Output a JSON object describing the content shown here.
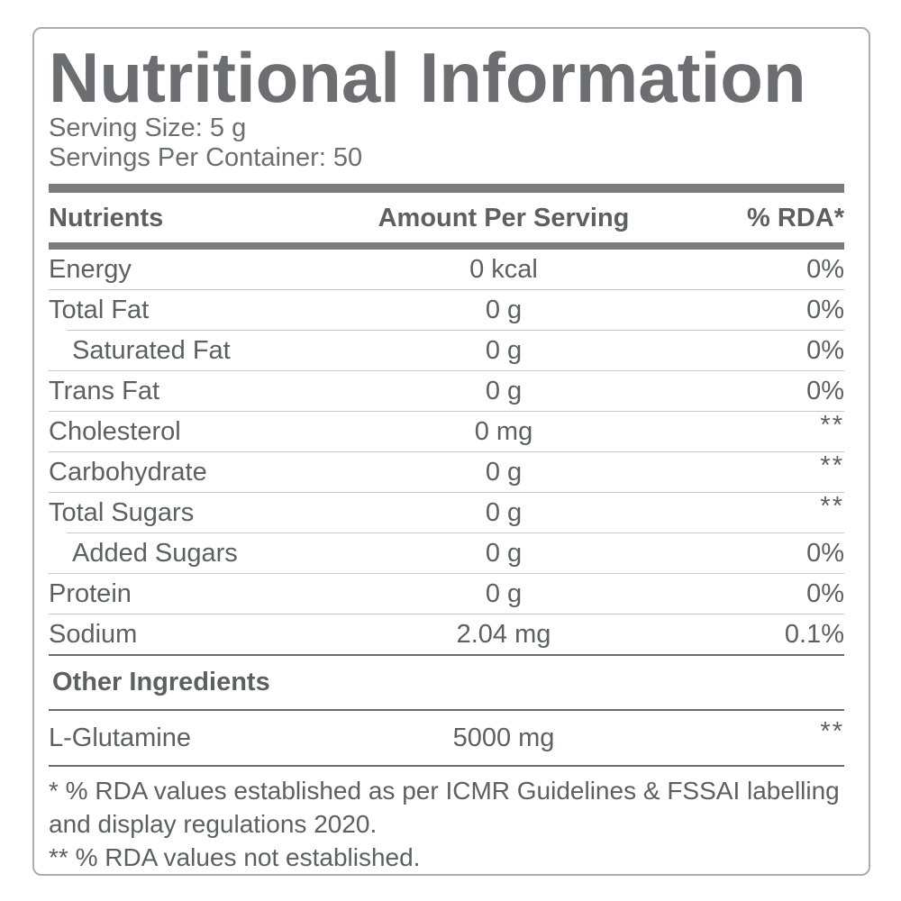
{
  "title": "Nutritional Information",
  "serving": {
    "size": "Serving Size: 5 g",
    "per_container": "Servings Per Container: 50"
  },
  "table": {
    "headers": {
      "nutrients": "Nutrients",
      "amount": "Amount Per Serving",
      "rda": "% RDA*"
    },
    "rows": [
      {
        "label": "Energy",
        "amount": "0 kcal",
        "rda": "0%",
        "indent": false,
        "sep": "none"
      },
      {
        "label": "Total Fat",
        "amount": "0 g",
        "rda": "0%",
        "indent": false,
        "sep": "full"
      },
      {
        "label": "Saturated Fat",
        "amount": "0 g",
        "rda": "0%",
        "indent": true,
        "sep": "indent"
      },
      {
        "label": "Trans Fat",
        "amount": "0 g",
        "rda": "0%",
        "indent": false,
        "sep": "full"
      },
      {
        "label": "Cholesterol",
        "amount": "0 mg",
        "rda": "**",
        "indent": false,
        "sep": "full"
      },
      {
        "label": "Carbohydrate",
        "amount": "0 g",
        "rda": "**",
        "indent": false,
        "sep": "full"
      },
      {
        "label": "Total Sugars",
        "amount": "0 g",
        "rda": "**",
        "indent": false,
        "sep": "full"
      },
      {
        "label": "Added Sugars",
        "amount": "0 g",
        "rda": "0%",
        "indent": true,
        "sep": "indent"
      },
      {
        "label": "Protein",
        "amount": "0 g",
        "rda": "0%",
        "indent": false,
        "sep": "full"
      },
      {
        "label": "Sodium",
        "amount": "2.04 mg",
        "rda": "0.1%",
        "indent": false,
        "sep": "full"
      }
    ]
  },
  "other_ingredients": {
    "heading": "Other Ingredients",
    "rows": [
      {
        "label": "L-Glutamine",
        "amount": "5000 mg",
        "rda": "**"
      }
    ]
  },
  "footnotes": {
    "line1": "* % RDA values established as per ICMR Guidelines & FSSAI labelling and display regulations 2020.",
    "line2": "** % RDA values not established."
  },
  "colors": {
    "text_gray": "#5d5f62",
    "title_gray": "#6d6e71",
    "bar_gray": "#7a7b7e",
    "light_line": "#c6c8ca",
    "dark_line": "#6a6b6e",
    "border": "#aaacae"
  }
}
